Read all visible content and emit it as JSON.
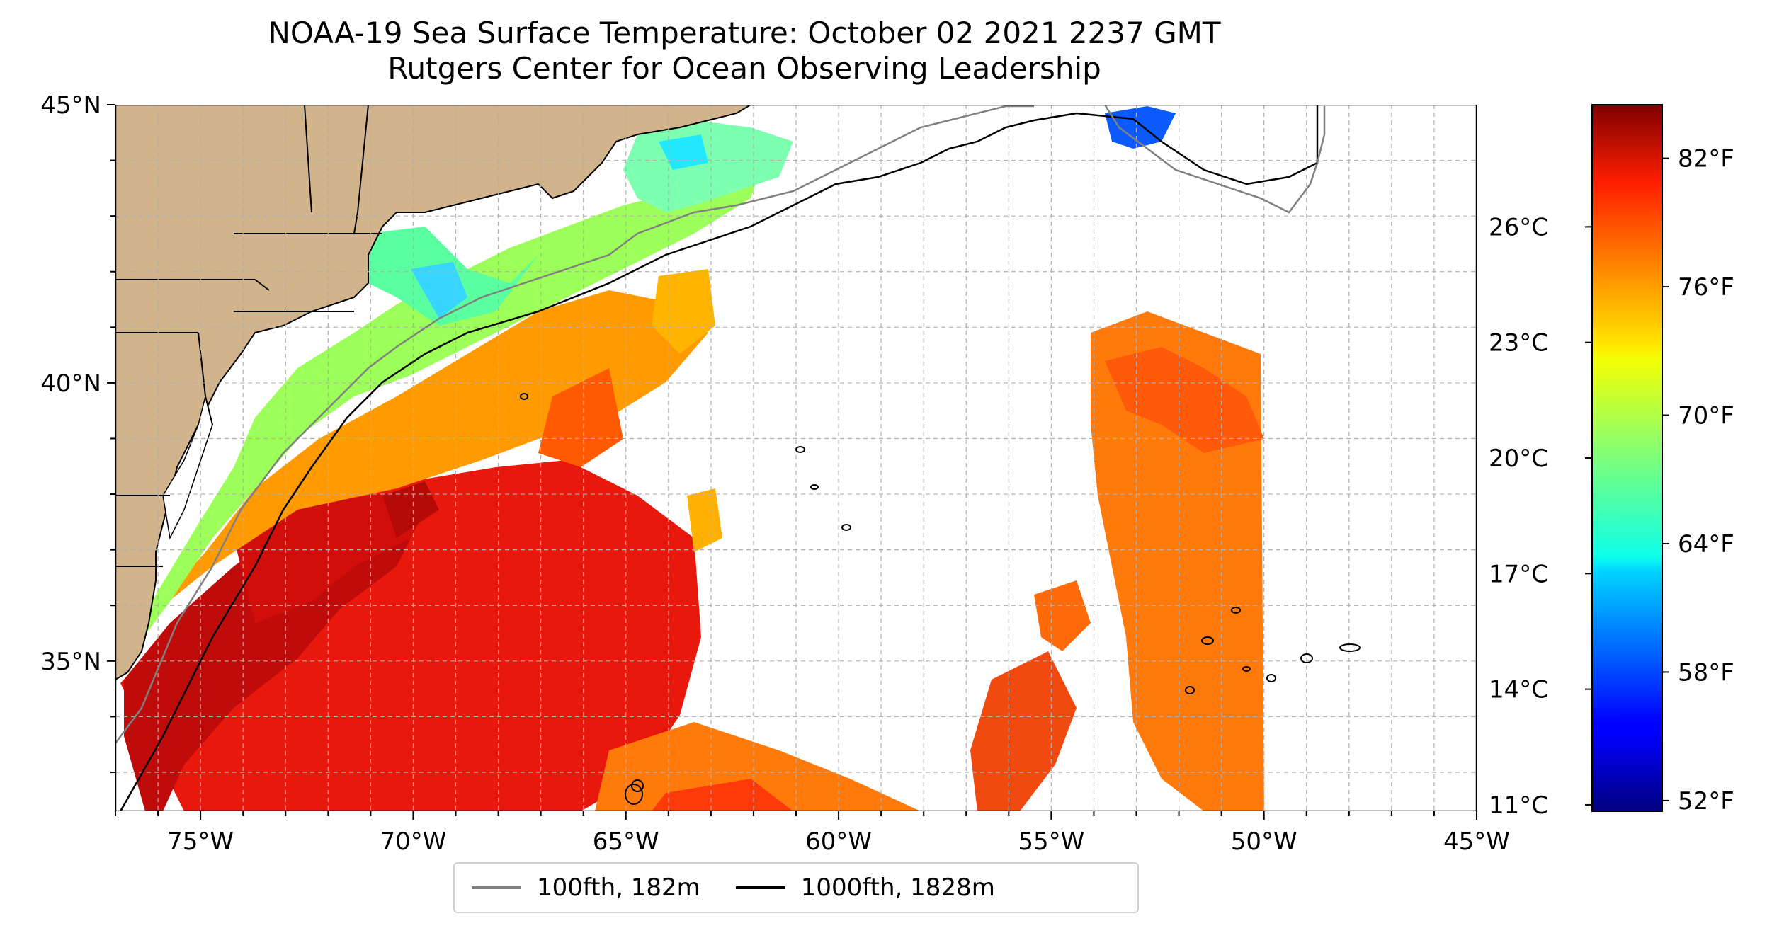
{
  "title": {
    "line1": "NOAA-19 Sea Surface Temperature: October 02 2021 2237 GMT",
    "line2": "Rutgers Center for Ocean Observing Leadership"
  },
  "map": {
    "lon_range": [
      -77,
      -45
    ],
    "lat_range": [
      32.3,
      45
    ],
    "lon_ticks": [
      "75°W",
      "70°W",
      "65°W",
      "60°W",
      "55°W",
      "50°W",
      "45°W"
    ],
    "lon_tick_values": [
      -75,
      -70,
      -65,
      -60,
      -55,
      -50,
      -45
    ],
    "lat_ticks": [
      "45°N",
      "40°N",
      "35°N"
    ],
    "lat_tick_values": [
      45,
      40,
      35
    ],
    "land_color": "#d2b48c",
    "grid": "dashed"
  },
  "colorbar": {
    "colormap": "jet",
    "fahrenheit_ticks": [
      "82°F",
      "76°F",
      "70°F",
      "64°F",
      "58°F",
      "52°F"
    ],
    "fahrenheit_values": [
      82,
      76,
      70,
      64,
      58,
      52
    ],
    "celsius_ticks": [
      "26°C",
      "23°C",
      "20°C",
      "17°C",
      "14°C",
      "11°C"
    ],
    "celsius_values": [
      26,
      23,
      20,
      17,
      14,
      11
    ],
    "range_f": [
      51.5,
      84.5
    ]
  },
  "legend": {
    "items": [
      {
        "label": "100fth, 182m",
        "color": "#808080"
      },
      {
        "label": "1000fth, 1828m",
        "color": "#000000"
      }
    ]
  }
}
